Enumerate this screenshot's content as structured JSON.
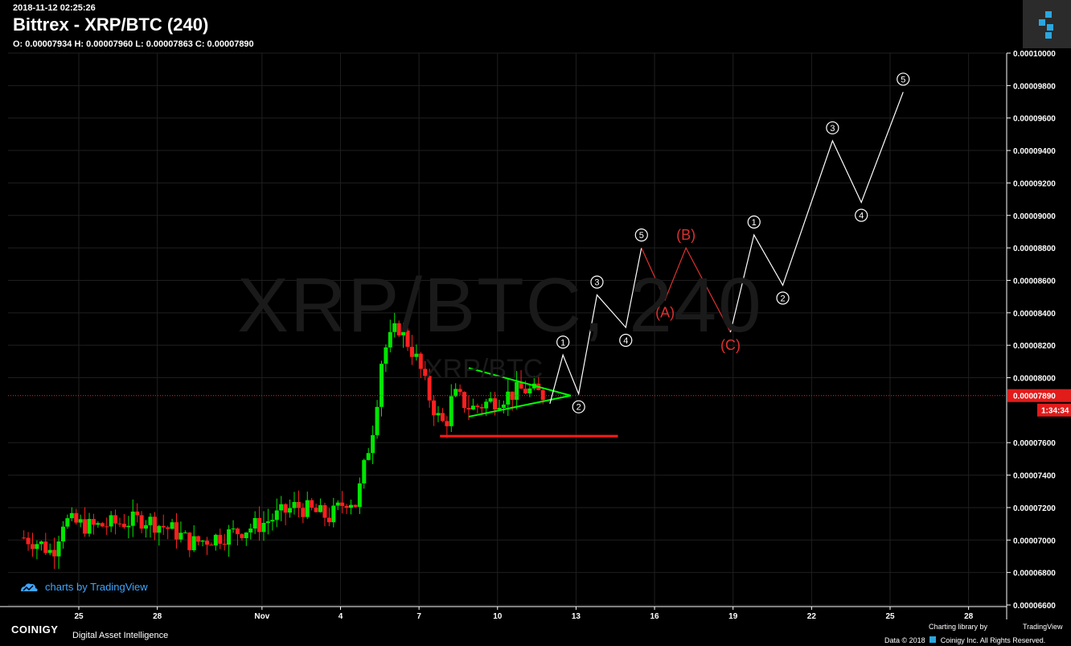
{
  "header": {
    "timestamp": "2018-11-12 02:25:26",
    "title": "Bittrex - XRP/BTC (240)",
    "ohlc": "O: 0.00007934 H: 0.00007960 L: 0.00007863 C: 0.00007890"
  },
  "watermark": {
    "big": "XRP/BTC, 240",
    "small": "XRP/BTC"
  },
  "branding": {
    "tv_badge": "charts by TradingView",
    "coinigy": "COINIGY",
    "coinigy_sub": "Digital Asset Intelligence",
    "charting_library": "Charting library by",
    "tradingview": "TradingView",
    "data_credit": "Data © 2018",
    "data_company": "Coinigy Inc. All Rights Reserved."
  },
  "colors": {
    "up": "#00e600",
    "down": "#ff2020",
    "grid": "#1f1f1f",
    "wave_white": "#ffffff",
    "wave_red": "#e03030",
    "triangle": "#00ff00",
    "support": "#ff1a1a",
    "price_tag": "#e21b1b"
  },
  "chart_data": {
    "type": "candlestick",
    "y_axis": {
      "min": 6.6e-05,
      "max": 0.0001,
      "ticks": [
        "0.00010000",
        "0.00009800",
        "0.00009600",
        "0.00009400",
        "0.00009200",
        "0.00009000",
        "0.00008800",
        "0.00008600",
        "0.00008400",
        "0.00008200",
        "0.00008000",
        "0.00007600",
        "0.00007400",
        "0.00007200",
        "0.00007000",
        "0.00006800",
        "0.00006600"
      ]
    },
    "x_axis": {
      "ticks": [
        {
          "label": "25",
          "day": 25
        },
        {
          "label": "28",
          "day": 28
        },
        {
          "label": "Nov",
          "day": 32
        },
        {
          "label": "4",
          "day": 35
        },
        {
          "label": "7",
          "day": 38
        },
        {
          "label": "10",
          "day": 41
        },
        {
          "label": "13",
          "day": 44
        },
        {
          "label": "16",
          "day": 47
        },
        {
          "label": "19",
          "day": 50
        },
        {
          "label": "22",
          "day": 53
        },
        {
          "label": "25",
          "day": 56
        },
        {
          "label": "28",
          "day": 59
        }
      ]
    },
    "current_price": {
      "value": 7.89e-05,
      "label": "0.00007890",
      "countdown": "1:34:34"
    },
    "candle_keypoints": [
      {
        "day": 22.9,
        "price": 7.015e-05
      },
      {
        "day": 23.5,
        "price": 6.98e-05
      },
      {
        "day": 24.0,
        "price": 6.92e-05
      },
      {
        "day": 24.4,
        "price": 7.12e-05
      },
      {
        "day": 25.5,
        "price": 7.08e-05
      },
      {
        "day": 27.5,
        "price": 7.13e-05
      },
      {
        "day": 28.6,
        "price": 7.06e-05
      },
      {
        "day": 29.3,
        "price": 6.98e-05
      },
      {
        "day": 30.8,
        "price": 7.04e-05
      },
      {
        "day": 32.0,
        "price": 7.1e-05
      },
      {
        "day": 33.3,
        "price": 7.21e-05
      },
      {
        "day": 34.6,
        "price": 7.14e-05
      },
      {
        "day": 35.3,
        "price": 7.26e-05
      },
      {
        "day": 35.6,
        "price": 7.22e-05
      },
      {
        "day": 36.0,
        "price": 7.52e-05
      },
      {
        "day": 36.3,
        "price": 7.74e-05
      },
      {
        "day": 36.6,
        "price": 8.15e-05
      },
      {
        "day": 37.2,
        "price": 8.32e-05
      },
      {
        "day": 37.7,
        "price": 8.18e-05
      },
      {
        "day": 38.0,
        "price": 8.08e-05
      },
      {
        "day": 38.3,
        "price": 7.92e-05
      },
      {
        "day": 38.7,
        "price": 7.76e-05
      },
      {
        "day": 39.0,
        "price": 7.7e-05
      },
      {
        "day": 39.3,
        "price": 7.9e-05
      },
      {
        "day": 40.0,
        "price": 7.81e-05
      },
      {
        "day": 41.0,
        "price": 7.87e-05
      },
      {
        "day": 42.0,
        "price": 7.93e-05
      },
      {
        "day": 42.8,
        "price": 7.89e-05
      }
    ],
    "annotations": {
      "wave_white_1": [
        {
          "day": 43.0,
          "price": 7.84e-05
        },
        {
          "day": 43.5,
          "price": 8.14e-05,
          "label": "1"
        },
        {
          "day": 44.1,
          "price": 7.9e-05,
          "label": "2"
        },
        {
          "day": 44.8,
          "price": 8.51e-05,
          "label": "3"
        },
        {
          "day": 45.9,
          "price": 8.31e-05,
          "label": "4"
        },
        {
          "day": 46.5,
          "price": 8.8e-05,
          "label": "5"
        }
      ],
      "wave_red": [
        {
          "day": 46.5,
          "price": 8.8e-05
        },
        {
          "day": 47.4,
          "price": 8.48e-05,
          "label": "(A)"
        },
        {
          "day": 48.2,
          "price": 8.8e-05,
          "label": "(B)"
        },
        {
          "day": 49.9,
          "price": 8.28e-05,
          "label": "(C)"
        }
      ],
      "wave_white_2": [
        {
          "day": 49.9,
          "price": 8.28e-05
        },
        {
          "day": 50.8,
          "price": 8.88e-05,
          "label": "1"
        },
        {
          "day": 51.9,
          "price": 8.57e-05,
          "label": "2"
        },
        {
          "day": 53.8,
          "price": 9.46e-05,
          "label": "3"
        },
        {
          "day": 54.9,
          "price": 9.08e-05,
          "label": "4"
        },
        {
          "day": 56.5,
          "price": 9.76e-05,
          "label": "5"
        }
      ],
      "triangle": [
        {
          "day": 39.9,
          "price": 8.06e-05
        },
        {
          "day": 43.8,
          "price": 7.89e-05
        },
        {
          "day": 39.9,
          "price": 7.76e-05
        }
      ],
      "support_line": {
        "day_start": 38.8,
        "day_end": 45.6,
        "price": 7.64e-05
      }
    }
  }
}
